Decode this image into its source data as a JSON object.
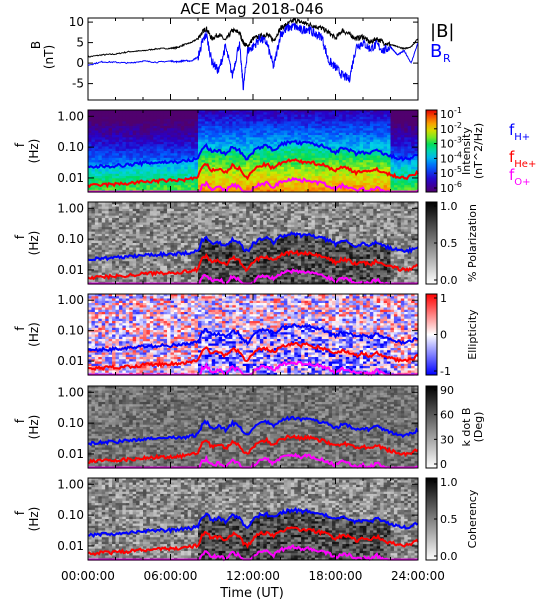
{
  "chart_data": [
    {
      "type": "line",
      "title": "ACE Mag 2018-046",
      "ylabel": "B (nT)",
      "ylim": [
        -9,
        11
      ],
      "yticks": [
        -5,
        0,
        5,
        10
      ],
      "xlim": [
        0,
        24
      ],
      "series": [
        {
          "name": "|B|",
          "color": "#000000",
          "x": [
            0,
            1,
            2,
            3,
            4,
            5,
            6,
            6.5,
            7,
            7.5,
            8,
            8.3,
            8.6,
            9,
            9.5,
            10,
            10.5,
            11,
            11.3,
            11.6,
            12,
            12.5,
            13,
            13.5,
            14,
            14.5,
            15,
            15.5,
            16,
            16.5,
            17,
            17.5,
            18,
            18.5,
            19,
            19.5,
            20,
            20.5,
            21,
            21.5,
            22,
            22.5,
            23,
            23.5,
            24
          ],
          "y": [
            1.5,
            2,
            2.2,
            2.8,
            3,
            3.5,
            3.6,
            3.8,
            4.5,
            5,
            6,
            7.5,
            8.5,
            6,
            7,
            5.5,
            8,
            7.5,
            5,
            4,
            6,
            6.5,
            7,
            5.5,
            8.5,
            9.5,
            10.5,
            10,
            9.5,
            9,
            8.5,
            7.5,
            6,
            8,
            7,
            6,
            6.5,
            5,
            6,
            5,
            4.5,
            4,
            3.5,
            4,
            6
          ]
        },
        {
          "name": "B_R",
          "color": "#0000ff",
          "x": [
            0,
            1,
            2,
            3,
            4,
            5,
            6,
            6.5,
            7,
            7.5,
            8,
            8.3,
            8.6,
            9,
            9.5,
            10,
            10.5,
            11,
            11.3,
            11.6,
            12,
            12.5,
            13,
            13.5,
            14,
            14.5,
            15,
            15.5,
            16,
            16.5,
            17,
            17.5,
            18,
            18.5,
            19,
            19.5,
            20,
            20.5,
            21,
            21.5,
            22,
            22.5,
            23,
            23.5,
            24
          ],
          "y": [
            -0.5,
            0.3,
            0.2,
            0,
            0.5,
            0.2,
            0.5,
            0.3,
            0.6,
            0.5,
            1.5,
            5,
            7,
            0.5,
            -2,
            4,
            -3,
            5,
            -6,
            3,
            4,
            6,
            5,
            -1,
            7,
            8.5,
            9,
            8,
            8.5,
            7,
            6.5,
            0.5,
            -1,
            -3,
            -4,
            4,
            5,
            3.5,
            4.5,
            3,
            4,
            2,
            3,
            0,
            5
          ]
        }
      ],
      "legend": [
        {
          "text": "|B|",
          "color": "#000000"
        },
        {
          "text": "B",
          "sub": "R",
          "color": "#0000ff"
        }
      ]
    },
    {
      "type": "heatmap",
      "ylabel": "f (Hz)",
      "yticks": [
        "1.00",
        "0.10",
        "0.01"
      ],
      "colorbar": {
        "label": "Intensity (nT^2/Hz)",
        "ticks": [
          "10^-1",
          "10^-2",
          "10^-3",
          "10^-4",
          "10^-5",
          "10^-6"
        ]
      },
      "lines": [
        {
          "name": "f_H+",
          "color": "#0000ff"
        },
        {
          "name": "f_He+",
          "color": "#ff0000"
        },
        {
          "name": "f_O+",
          "color": "#ff00ff"
        }
      ]
    },
    {
      "type": "heatmap",
      "ylabel": "f (Hz)",
      "yticks": [
        "1.00",
        "0.10",
        "0.01"
      ],
      "colorbar": {
        "label": "% Polarization",
        "ticks": [
          "1.0",
          "0.5",
          "0.0"
        ]
      }
    },
    {
      "type": "heatmap",
      "ylabel": "f (Hz)",
      "yticks": [
        "1.00",
        "0.10",
        "0.01"
      ],
      "colorbar": {
        "label": "Ellipticity",
        "ticks": [
          "1",
          "0",
          "-1"
        ]
      }
    },
    {
      "type": "heatmap",
      "ylabel": "f (Hz)",
      "yticks": [
        "1.00",
        "0.10",
        "0.01"
      ],
      "colorbar": {
        "label": "k dot B (Deg)",
        "ticks": [
          "90",
          "60",
          "30",
          "0"
        ]
      }
    },
    {
      "type": "heatmap",
      "ylabel": "f (Hz)",
      "yticks": [
        "1.00",
        "0.10",
        "0.01"
      ],
      "colorbar": {
        "label": "Coherency",
        "ticks": [
          "1.0",
          "0.5",
          "0.0"
        ]
      }
    }
  ],
  "x_axis": {
    "label": "Time (UT)",
    "ticks": [
      "00:00:00",
      "06:00:00",
      "12:00:00",
      "18:00:00",
      "24:00:00"
    ],
    "range_hours": [
      0,
      24
    ]
  },
  "cyclotron_lines": {
    "x_hours": [
      0,
      1,
      2,
      3,
      4,
      5,
      6,
      7,
      7.5,
      8,
      8.3,
      8.6,
      9,
      9.5,
      10,
      10.5,
      11,
      11.3,
      11.6,
      12,
      12.5,
      13,
      13.5,
      14,
      14.5,
      15,
      15.5,
      16,
      16.5,
      17,
      17.5,
      18,
      18.5,
      19,
      19.5,
      20,
      20.5,
      21,
      21.5,
      22,
      22.5,
      23,
      23.5,
      24
    ],
    "fH_hz": [
      0.022,
      0.024,
      0.025,
      0.027,
      0.03,
      0.032,
      0.033,
      0.035,
      0.038,
      0.042,
      0.09,
      0.11,
      0.07,
      0.08,
      0.06,
      0.1,
      0.08,
      0.05,
      0.04,
      0.07,
      0.1,
      0.11,
      0.08,
      0.12,
      0.14,
      0.15,
      0.13,
      0.14,
      0.12,
      0.11,
      0.09,
      0.07,
      0.09,
      0.08,
      0.06,
      0.07,
      0.06,
      0.08,
      0.06,
      0.05,
      0.045,
      0.04,
      0.045,
      0.06
    ]
  },
  "colors": {
    "H": "#0000ff",
    "He": "#ff0000",
    "O": "#ff00ff"
  }
}
